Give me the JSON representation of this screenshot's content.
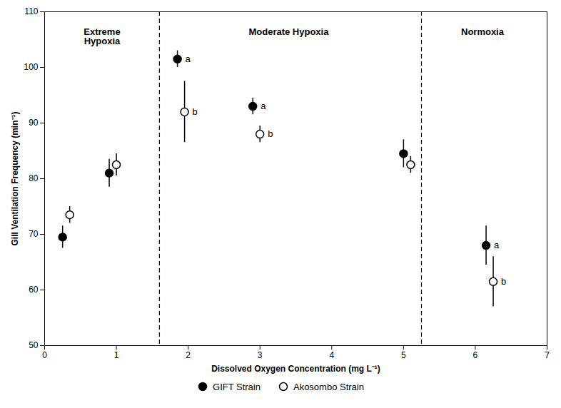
{
  "chart_data": {
    "type": "scatter",
    "xlabel": "Dissolved Oxygen Concentration (mg L⁻¹)",
    "ylabel": "Gill Ventilation Frequency (min⁻¹)",
    "xlim": [
      0,
      7
    ],
    "ylim": [
      50,
      110
    ],
    "xticks": [
      0,
      1,
      2,
      3,
      4,
      5,
      6,
      7
    ],
    "yticks": [
      50,
      60,
      70,
      80,
      90,
      100,
      110
    ],
    "grid": false,
    "legend": "bottom",
    "x": [
      0.3,
      0.95,
      1.9,
      2.95,
      5.05,
      6.2
    ],
    "series": [
      {
        "name": "GIFT Strain",
        "color": "black",
        "marker": "circle",
        "values": [
          69.5,
          81.0,
          101.5,
          93.0,
          84.5,
          68.0
        ],
        "errors": [
          2.0,
          2.5,
          1.5,
          1.5,
          2.5,
          3.5
        ],
        "point_labels": [
          null,
          null,
          "a",
          "a",
          null,
          "a"
        ]
      },
      {
        "name": "Akosombo Strain",
        "color": "black",
        "marker": "open_circle",
        "values": [
          73.5,
          82.5,
          92.0,
          88.0,
          82.5,
          61.5
        ],
        "errors": [
          1.5,
          2.0,
          5.5,
          1.5,
          1.5,
          4.5
        ],
        "point_labels": [
          null,
          null,
          "b",
          "b",
          null,
          "b"
        ]
      }
    ],
    "reference_lines": [
      {
        "x": 1.6,
        "line_style": "dashed",
        "color": "black"
      },
      {
        "x": 5.25,
        "line_style": "dashed",
        "color": "black"
      }
    ],
    "annotations": [
      {
        "text": "Extreme\nHypoxia",
        "x": 0.8,
        "y": 107
      },
      {
        "text": "Moderate Hypoxia",
        "x": 3.4,
        "y": 107
      },
      {
        "text": "Normoxia",
        "x": 6.1,
        "y": 107
      }
    ]
  }
}
